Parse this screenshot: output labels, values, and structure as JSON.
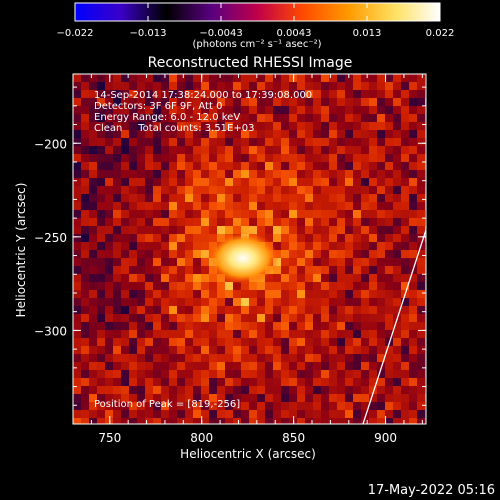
{
  "colorbar": {
    "ticks": [
      "−0.022",
      "−0.013",
      "−0.0043",
      "0.0043",
      "0.013",
      "0.022"
    ],
    "units": "(photons cm⁻² s⁻¹ asec⁻²)",
    "colors": [
      "#0000ff",
      "#3a00c8",
      "#000000",
      "#5a0080",
      "#c0004a",
      "#ff4a00",
      "#ff9a00",
      "#ffe060",
      "#ffffff"
    ]
  },
  "image": {
    "title": "Reconstructed RHESSI Image",
    "info_lines": [
      "14-Sep-2014 17:38:24.000 to 17:39:08.000",
      "Detectors: 3F 6F 9F, Att 0",
      "Energy Range: 6.0 - 12.0 keV",
      "Clean     Total counts: 3.51E+03"
    ],
    "peak_label": "Position of Peak = [819,-256]",
    "peak_position": [
      819,
      -256
    ],
    "x_range": [
      730,
      922
    ],
    "y_range": [
      -350,
      -163
    ]
  },
  "axes": {
    "xlabel": "Heliocentric X (arcsec)",
    "ylabel": "Heliocentric Y (arcsec)",
    "xticks": [
      {
        "value": 750,
        "label": "750"
      },
      {
        "value": 800,
        "label": "800"
      },
      {
        "value": 850,
        "label": "850"
      },
      {
        "value": 900,
        "label": "900"
      }
    ],
    "yticks": [
      {
        "value": -200,
        "label": "−200"
      },
      {
        "value": -250,
        "label": "−250"
      },
      {
        "value": -300,
        "label": "−300"
      }
    ]
  },
  "footer": {
    "timestamp": "17-May-2022 05:16"
  }
}
